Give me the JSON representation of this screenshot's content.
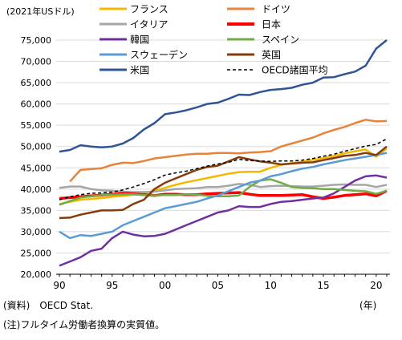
{
  "chart_data": {
    "type": "line",
    "ylabel": "(2021年USドル)",
    "xlabel": "(年)",
    "ylim": [
      20000,
      75000
    ],
    "y_ticks": [
      20000,
      25000,
      30000,
      35000,
      40000,
      45000,
      50000,
      55000,
      60000,
      65000,
      70000,
      75000
    ],
    "y_tick_labels": [
      "20,000",
      "25,000",
      "30,000",
      "35,000",
      "40,000",
      "45,000",
      "50,000",
      "55,000",
      "60,000",
      "65,000",
      "70,000",
      "75,000"
    ],
    "x_ticks": [
      1990,
      1995,
      2000,
      2005,
      2010,
      2015,
      2020
    ],
    "x_tick_labels": [
      "90",
      "95",
      "00",
      "05",
      "10",
      "15",
      "20"
    ],
    "grid": "horizontal",
    "legend_placement": "top",
    "x": [
      1990,
      1991,
      1992,
      1993,
      1994,
      1995,
      1996,
      1997,
      1998,
      1999,
      2000,
      2001,
      2002,
      2003,
      2004,
      2005,
      2006,
      2007,
      2008,
      2009,
      2010,
      2011,
      2012,
      2013,
      2014,
      2015,
      2016,
      2017,
      2018,
      2019,
      2020,
      2021
    ],
    "series": [
      {
        "name": "フランス",
        "color": "#F5B800",
        "width": 2.5,
        "dash": false,
        "values": [
          36500,
          37000,
          37500,
          37700,
          37900,
          38200,
          38400,
          38700,
          39100,
          39600,
          40300,
          41000,
          41600,
          42100,
          42600,
          43100,
          43600,
          44000,
          44100,
          44100,
          45000,
          45700,
          46100,
          46400,
          46900,
          47300,
          47800,
          48400,
          48900,
          49300,
          47600,
          49500
        ]
      },
      {
        "name": "ドイツ",
        "color": "#E8833A",
        "width": 2.5,
        "dash": false,
        "start": 1991,
        "values": [
          null,
          41800,
          44500,
          44700,
          44900,
          45700,
          46200,
          46100,
          46600,
          47200,
          47500,
          47800,
          48100,
          48300,
          48300,
          48500,
          48500,
          48400,
          48600,
          48700,
          48900,
          50000,
          50700,
          51400,
          52100,
          53100,
          53900,
          54600,
          55500,
          56300,
          55900,
          56000
        ]
      },
      {
        "name": "イタリア",
        "color": "#A6A6A6",
        "width": 2.5,
        "dash": false,
        "values": [
          40300,
          40600,
          40600,
          40000,
          39700,
          39600,
          39400,
          39300,
          39300,
          39400,
          39700,
          40000,
          40100,
          40200,
          40500,
          40500,
          40800,
          41200,
          41000,
          40500,
          40700,
          40800,
          40700,
          40600,
          40600,
          40800,
          41000,
          41100,
          41000,
          41000,
          40500,
          41000
        ]
      },
      {
        "name": "日本",
        "color": "#FF0000",
        "width": 3.5,
        "dash": false,
        "values": [
          37800,
          38000,
          38200,
          38400,
          38600,
          38800,
          39000,
          38900,
          38700,
          38500,
          38800,
          38800,
          38700,
          38700,
          38900,
          39000,
          39100,
          39200,
          38800,
          38500,
          38500,
          38500,
          38600,
          38700,
          38200,
          37800,
          38100,
          38500,
          38700,
          38900,
          38400,
          39600
        ]
      },
      {
        "name": "韓国",
        "color": "#7030A0",
        "width": 2.5,
        "dash": false,
        "values": [
          22000,
          23000,
          24000,
          25500,
          26000,
          28500,
          30000,
          29300,
          28900,
          29000,
          29500,
          30500,
          31500,
          32500,
          33500,
          34500,
          35000,
          36000,
          35800,
          35800,
          36500,
          37000,
          37200,
          37500,
          37800,
          38000,
          39000,
          40500,
          42000,
          43000,
          43200,
          42700
        ]
      },
      {
        "name": "スペイン",
        "color": "#70AD47",
        "width": 2.5,
        "dash": false,
        "values": [
          36300,
          37200,
          38000,
          38300,
          38600,
          38700,
          38800,
          38800,
          38600,
          38500,
          38600,
          38600,
          38800,
          38700,
          38400,
          38300,
          38300,
          38500,
          40500,
          42000,
          42300,
          41500,
          40500,
          40300,
          40200,
          40000,
          40000,
          39800,
          39600,
          39500,
          38900,
          39600
        ]
      },
      {
        "name": "スウェーデン",
        "color": "#5B9BD5",
        "width": 2.5,
        "dash": false,
        "values": [
          30000,
          28500,
          29200,
          29000,
          29500,
          30000,
          31500,
          32500,
          33500,
          34500,
          35500,
          36000,
          36500,
          37000,
          37800,
          38500,
          39500,
          40500,
          41500,
          42000,
          43000,
          43500,
          44200,
          44800,
          45200,
          45800,
          46300,
          46800,
          47200,
          47600,
          48000,
          48500
        ]
      },
      {
        "name": "英国",
        "color": "#843C0C",
        "width": 2.5,
        "dash": false,
        "values": [
          33200,
          33300,
          34000,
          34500,
          35000,
          35000,
          35100,
          36500,
          37500,
          40000,
          41500,
          42500,
          43500,
          44500,
          45200,
          45500,
          46500,
          47500,
          47000,
          46500,
          46200,
          45800,
          46000,
          46200,
          46300,
          46800,
          47300,
          47800,
          48000,
          48500,
          48000,
          50000
        ]
      },
      {
        "name": "米国",
        "color": "#2F5597",
        "width": 2.5,
        "dash": false,
        "values": [
          48800,
          49200,
          50300,
          50000,
          49800,
          50000,
          50700,
          52000,
          54000,
          55500,
          57600,
          58000,
          58500,
          59200,
          60000,
          60300,
          61200,
          62200,
          62100,
          62800,
          63300,
          63500,
          63800,
          64500,
          65000,
          66200,
          66300,
          67000,
          67600,
          69000,
          73000,
          75000
        ]
      },
      {
        "name": "OECD諸国平均",
        "color": "#000000",
        "width": 1.5,
        "dash": true,
        "values": [
          37500,
          38200,
          38700,
          39000,
          39100,
          39300,
          39800,
          40500,
          41300,
          42200,
          43300,
          43800,
          44200,
          44800,
          45400,
          45900,
          46300,
          47000,
          46700,
          46600,
          46500,
          46600,
          46600,
          46800,
          47200,
          47700,
          48200,
          48900,
          49500,
          50100,
          50500,
          51800
        ]
      }
    ]
  },
  "source_text": "(資料)　OECD Stat.",
  "note_text": "(注)フルタイム労働者換算の実質値。"
}
